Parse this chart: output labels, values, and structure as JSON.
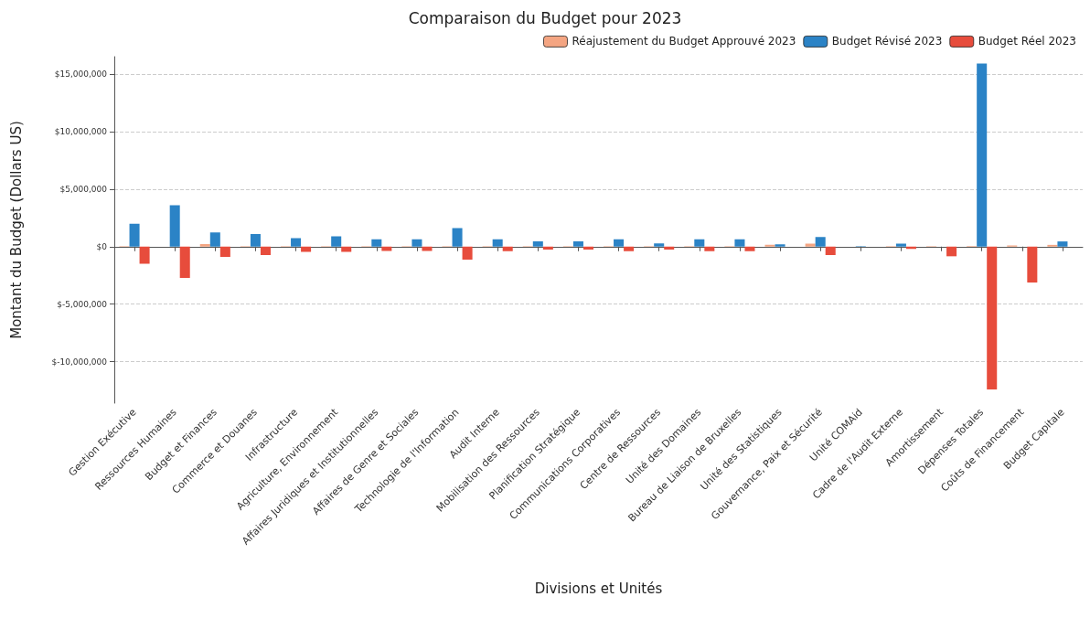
{
  "chart_data": {
    "type": "bar",
    "title": "Comparaison du Budget pour 2023",
    "xlabel": "Divisions et Unités",
    "ylabel": "Montant du Budget (Dollars US)",
    "categories": [
      "Gestion Exécutive",
      "Ressources Humaines",
      "Budget et Finances",
      "Commerce et Douanes",
      "Infrastructure",
      "Agriculture, Environnement",
      "Affaires Juridiques et Institutionnelles",
      "Affaires de Genre et Sociales",
      "Technologie de l'Information",
      "Audit Interne",
      "Mobilisation des Ressources",
      "Planification Stratégique",
      "Communications Corporatives",
      "Centre de Ressources",
      "Unité des Domaines",
      "Bureau de Liaison de Bruxelles",
      "Unité des Statistiques",
      "Gouvernance, Paix et Sécurité",
      "Unité COMAid",
      "Cadre de l'Audit Externe",
      "Amortissement",
      "Dépenses Totales",
      "Coûts de Financement",
      "Budget Capitale"
    ],
    "series": [
      {
        "name": "Réajustement du Budget Approuvé 2023",
        "color": "#f4a582",
        "values": [
          50000,
          null,
          220000,
          50000,
          50000,
          50000,
          50000,
          50000,
          50000,
          50000,
          50000,
          50000,
          50000,
          50000,
          50000,
          50000,
          150000,
          250000,
          null,
          50000,
          50000,
          50000,
          100000,
          150000
        ]
      },
      {
        "name": "Budget Révisé 2023",
        "color": "#2b83c6",
        "values": [
          1980000,
          3590000,
          1240000,
          1090000,
          740000,
          890000,
          640000,
          640000,
          1610000,
          640000,
          450000,
          450000,
          640000,
          270000,
          640000,
          640000,
          200000,
          840000,
          50000,
          250000,
          0,
          15900000,
          0,
          450000
        ]
      },
      {
        "name": "Budget Réel 2023",
        "color": "#e74c3c",
        "values": [
          -1490000,
          -2720000,
          -890000,
          -740000,
          -450000,
          -450000,
          -370000,
          -370000,
          -1140000,
          -400000,
          -250000,
          -250000,
          -400000,
          -250000,
          -400000,
          -400000,
          null,
          -740000,
          null,
          -200000,
          -840000,
          -12400000,
          -3120000,
          0
        ]
      }
    ],
    "ylim": [
      -13600000,
      16500000
    ],
    "yticks": [
      {
        "value": -10000000,
        "label": "$-10,000,000"
      },
      {
        "value": -5000000,
        "label": "$-5,000,000"
      },
      {
        "value": 0,
        "label": "$0"
      },
      {
        "value": 5000000,
        "label": "$5,000,000"
      },
      {
        "value": 10000000,
        "label": "$10,000,000"
      },
      {
        "value": 15000000,
        "label": "$15,000,000"
      }
    ],
    "grid": "y",
    "legend": "top right"
  }
}
